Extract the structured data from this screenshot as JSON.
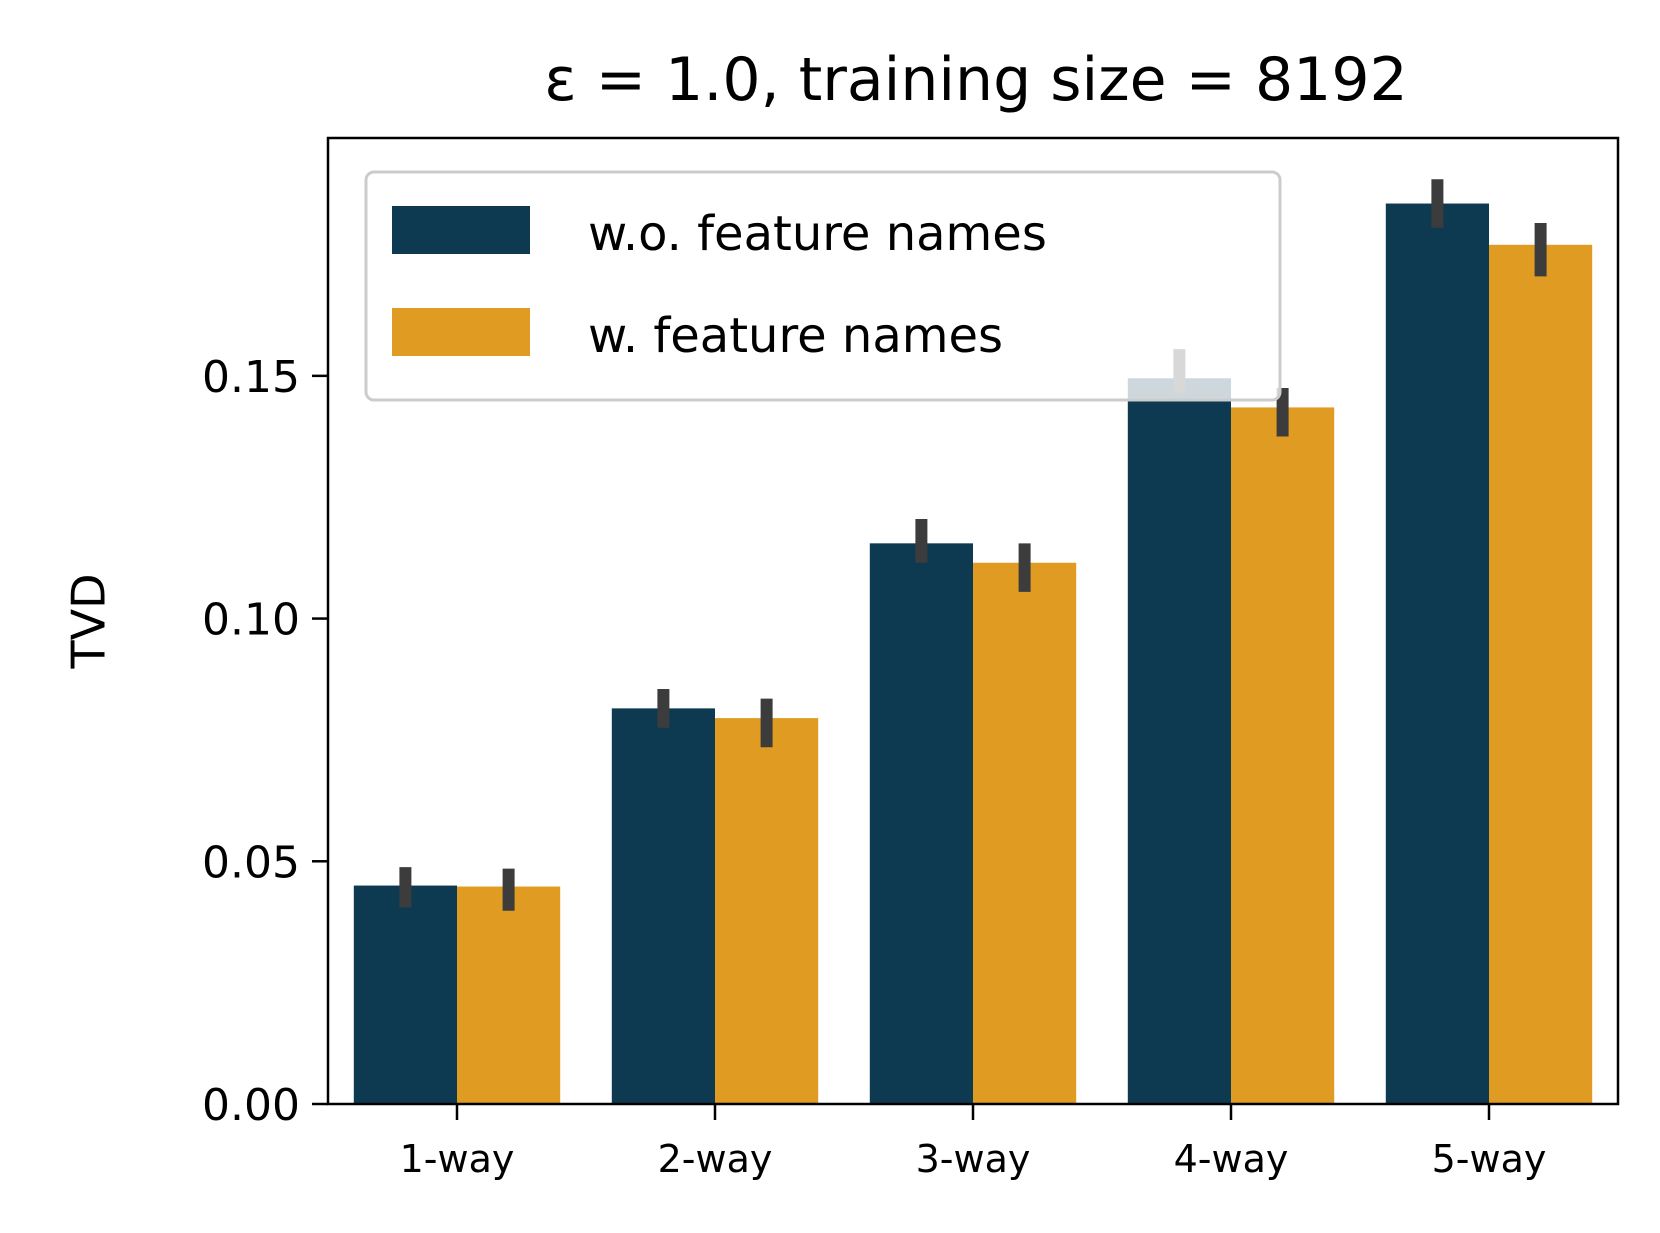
{
  "chart_data": {
    "type": "bar",
    "title": "ε = 1.0, training size = 8192",
    "xlabel": "",
    "ylabel": "TVD",
    "categories": [
      "1-way",
      "2-way",
      "3-way",
      "4-way",
      "5-way"
    ],
    "series": [
      {
        "name": "w.o. feature names",
        "color": "#0d3a51",
        "values": [
          0.045,
          0.0815,
          0.1155,
          0.1495,
          0.1855
        ],
        "err_low": [
          0.0405,
          0.0775,
          0.1115,
          0.1465,
          0.1805
        ],
        "err_high": [
          0.0488,
          0.0855,
          0.1205,
          0.1555,
          0.1905
        ]
      },
      {
        "name": "w. feature names",
        "color": "#e09c22",
        "values": [
          0.0448,
          0.0795,
          0.1115,
          0.1435,
          0.177
        ],
        "err_low": [
          0.0398,
          0.0735,
          0.1055,
          0.1375,
          0.1705
        ],
        "err_high": [
          0.0485,
          0.0835,
          0.1155,
          0.1475,
          0.1815
        ]
      }
    ],
    "yticks": [
      "0.00",
      "0.05",
      "0.10",
      "0.15"
    ],
    "ylim": [
      0,
      0.199
    ],
    "legend_position": "top-left",
    "grid": false,
    "error_bar_color": "#3c3c3c"
  }
}
